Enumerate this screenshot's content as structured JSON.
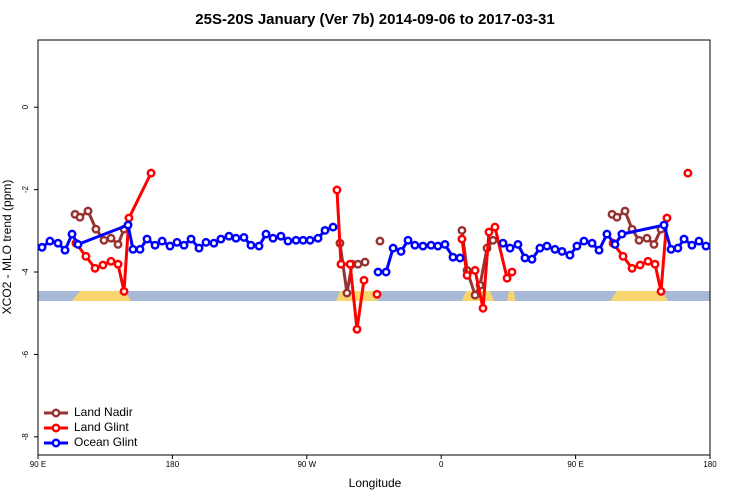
{
  "chart_data": {
    "type": "line",
    "title": "25S-20S January (Ver 7b)   2014-09-06 to 2017-03-31",
    "x_label": "Longitude",
    "y_label": "XCO2 - MLO trend (ppm)",
    "xlim": [
      90,
      540
    ],
    "ylim": [
      -8.44,
      1.63
    ],
    "xticks": [
      {
        "value": 90,
        "label": "90 E"
      },
      180,
      {
        "value": 270,
        "label": "90 W"
      },
      {
        "value": 360,
        "label": "0"
      },
      {
        "value": 450,
        "label": "90 E"
      },
      {
        "value": 540,
        "label": "180"
      }
    ],
    "yticks": [
      0,
      -2,
      -4,
      -6,
      -8
    ],
    "legend_position": "bottom-left",
    "series": [
      {
        "name": "Land Nadir",
        "color": "#993333",
        "x": [
          114.8,
          118.1,
          123.5,
          128.8,
          134.2,
          138.9,
          143.6,
          147.6,
          null,
          292.2,
          296.9,
          300.3,
          304.3,
          309.0,
          null,
          319.0,
          null,
          373.9,
          377.3,
          382.7,
          386.0,
          390.7,
          394.7,
          null,
          474.4,
          477.7,
          483.1,
          487.8,
          492.5,
          497.8,
          502.5,
          507.2
        ],
        "values": [
          -2.6,
          -2.67,
          -2.52,
          -2.96,
          -3.23,
          -3.18,
          -3.33,
          -2.96,
          null,
          -3.3,
          -4.51,
          -3.81,
          -3.81,
          -3.76,
          null,
          -3.25,
          null,
          -2.99,
          -3.96,
          -4.56,
          -4.32,
          -3.42,
          -3.23,
          null,
          -2.6,
          -2.67,
          -2.52,
          -2.96,
          -3.23,
          -3.18,
          -3.33,
          -2.96
        ]
      },
      {
        "name": "Land Glint",
        "color": "#ff0000",
        "x": [
          115.4,
          122.1,
          128.2,
          133.5,
          138.9,
          143.6,
          147.6,
          150.9,
          165.7,
          null,
          290.2,
          292.9,
          299.0,
          303.6,
          308.3,
          null,
          317.0,
          null,
          373.9,
          377.3,
          382.7,
          388.0,
          392.0,
          396.0,
          404.1,
          407.4,
          null,
          475.1,
          481.8,
          487.8,
          493.2,
          498.5,
          503.2,
          507.2,
          511.2,
          null,
          525.2
        ],
        "values": [
          -3.3,
          -3.62,
          -3.91,
          -3.83,
          -3.74,
          -3.81,
          -4.47,
          -2.69,
          -1.6,
          null,
          -2.01,
          -3.81,
          -3.81,
          -5.39,
          -4.2,
          null,
          -4.54,
          null,
          -3.2,
          -4.08,
          -3.96,
          -4.88,
          -3.03,
          -2.91,
          -4.15,
          -4.0,
          null,
          -3.3,
          -3.62,
          -3.91,
          -3.83,
          -3.74,
          -3.81,
          -4.47,
          -2.69,
          null,
          -1.6
        ]
      },
      {
        "name": "Ocean Glint",
        "color": "#0000ff",
        "x": [
          92.7,
          98.0,
          103.4,
          108.1,
          112.8,
          116.8,
          150.3,
          153.6,
          158.3,
          163.0,
          168.4,
          173.1,
          178.4,
          183.1,
          187.8,
          192.5,
          197.8,
          202.5,
          207.8,
          212.5,
          217.9,
          222.6,
          227.9,
          232.6,
          238.0,
          242.7,
          247.4,
          252.7,
          257.4,
          262.8,
          267.5,
          272.2,
          277.5,
          282.2,
          287.6,
          null,
          317.7,
          323.1,
          327.8,
          333.1,
          337.8,
          342.4,
          347.8,
          353.2,
          357.8,
          362.5,
          367.9,
          372.6,
          null,
          401.4,
          406.1,
          411.4,
          416.1,
          420.8,
          426.1,
          430.8,
          436.2,
          440.9,
          446.2,
          450.9,
          455.6,
          461.0,
          465.7,
          471.0,
          476.4,
          481.0,
          509.2,
          513.9,
          518.5,
          522.6,
          527.9,
          532.6,
          537.3
        ],
        "values": [
          -3.4,
          -3.25,
          -3.3,
          -3.47,
          -3.08,
          -3.33,
          -2.86,
          -3.45,
          -3.45,
          -3.2,
          -3.35,
          -3.25,
          -3.37,
          -3.28,
          -3.35,
          -3.2,
          -3.42,
          -3.28,
          -3.3,
          -3.2,
          -3.13,
          -3.18,
          -3.16,
          -3.35,
          -3.37,
          -3.08,
          -3.18,
          -3.13,
          -3.25,
          -3.23,
          -3.23,
          -3.23,
          -3.18,
          -2.99,
          -2.91,
          null,
          -4.0,
          -4.0,
          -3.42,
          -3.5,
          -3.23,
          -3.35,
          -3.37,
          -3.35,
          -3.37,
          -3.33,
          -3.64,
          -3.66,
          null,
          -3.3,
          -3.42,
          -3.33,
          -3.66,
          -3.69,
          -3.42,
          -3.37,
          -3.45,
          -3.5,
          -3.59,
          -3.37,
          -3.25,
          -3.3,
          -3.47,
          -3.08,
          -3.33,
          -3.08,
          -2.86,
          -3.45,
          -3.42,
          -3.2,
          -3.35,
          -3.25,
          -3.37
        ]
      }
    ]
  }
}
